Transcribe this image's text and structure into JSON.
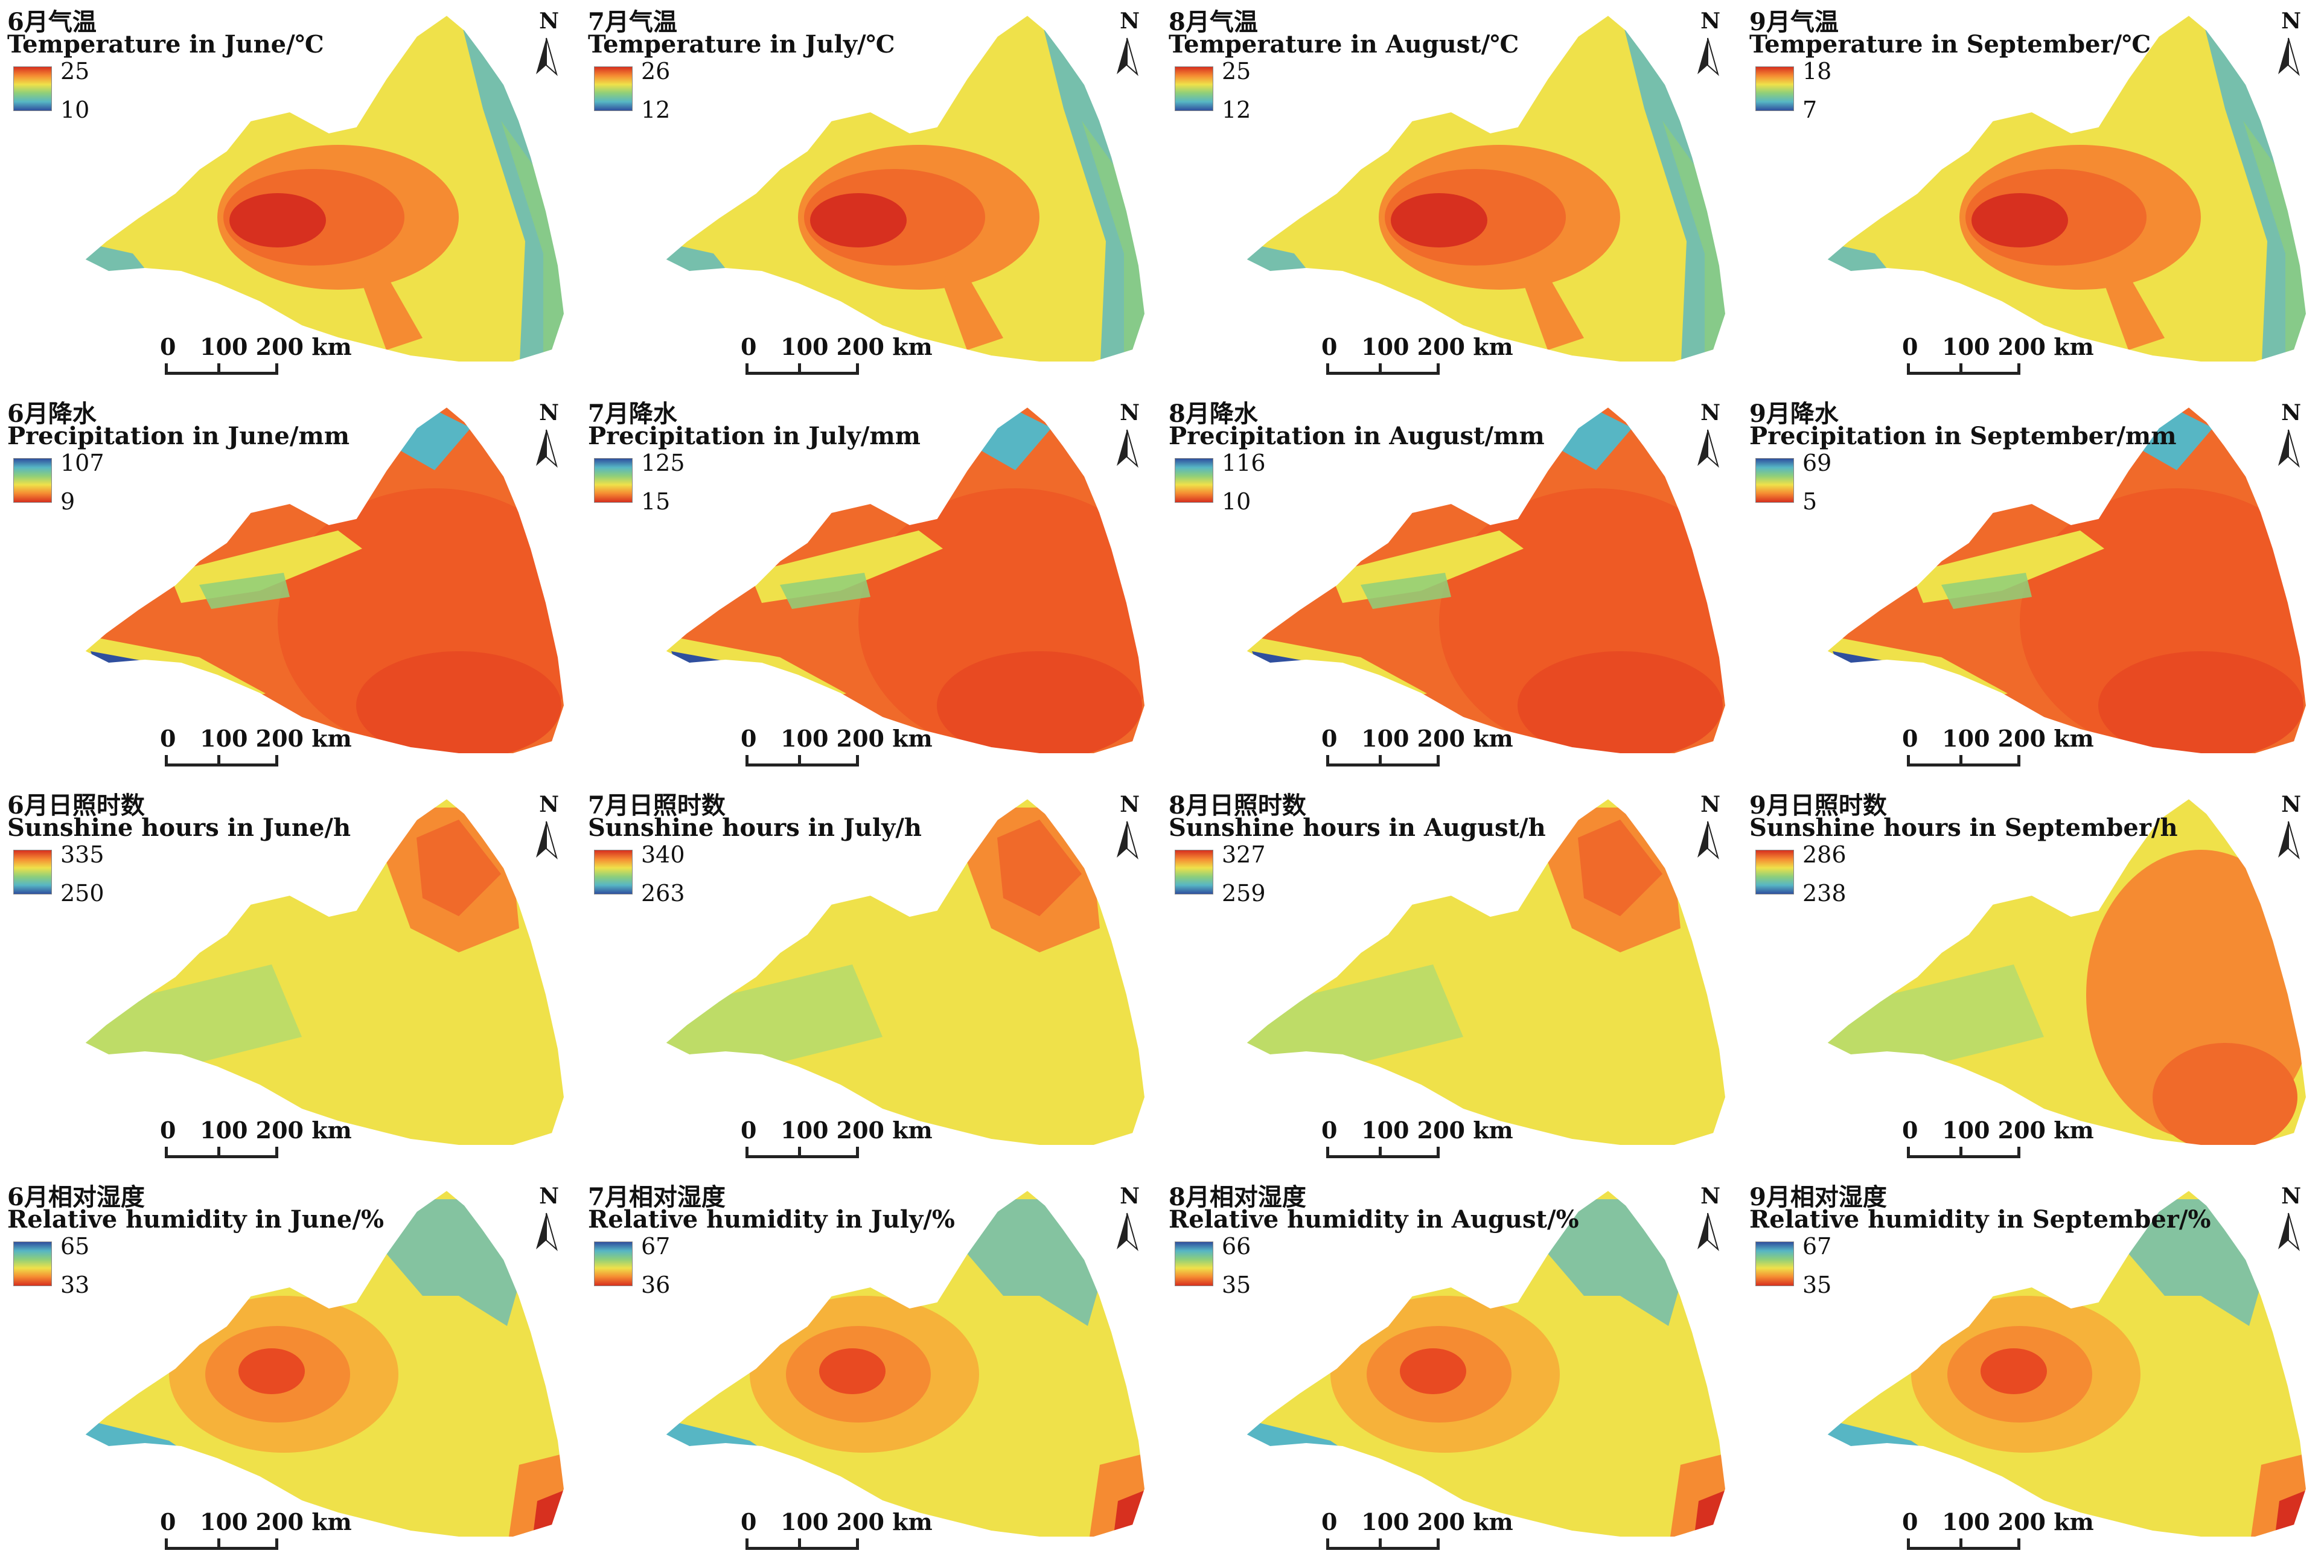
{
  "figure": {
    "rows": [
      {
        "variable": "temperature",
        "colormap": "warm-high",
        "panels": [
          {
            "title_cn": "6月气温",
            "title_en": "Temperature in June/℃",
            "legend_max": "25",
            "legend_min": "10"
          },
          {
            "title_cn": "7月气温",
            "title_en": "Temperature in July/℃",
            "legend_max": "26",
            "legend_min": "12"
          },
          {
            "title_cn": "8月气温",
            "title_en": "Temperature in August/℃",
            "legend_max": "25",
            "legend_min": "12"
          },
          {
            "title_cn": "9月气温",
            "title_en": "Temperature in September/℃",
            "legend_max": "18",
            "legend_min": "7"
          }
        ]
      },
      {
        "variable": "precipitation",
        "colormap": "cool-high",
        "panels": [
          {
            "title_cn": "6月降水",
            "title_en": "Precipitation in June/mm",
            "legend_max": "107",
            "legend_min": "9"
          },
          {
            "title_cn": "7月降水",
            "title_en": "Precipitation in July/mm",
            "legend_max": "125",
            "legend_min": "15"
          },
          {
            "title_cn": "8月降水",
            "title_en": "Precipitation in August/mm",
            "legend_max": "116",
            "legend_min": "10"
          },
          {
            "title_cn": "9月降水",
            "title_en": "Precipitation in September/mm",
            "legend_max": "69",
            "legend_min": "5"
          }
        ]
      },
      {
        "variable": "sunshine",
        "colormap": "warm-high",
        "panels": [
          {
            "title_cn": "6月日照时数",
            "title_en": "Sunshine hours in June/h",
            "legend_max": "335",
            "legend_min": "250"
          },
          {
            "title_cn": "7月日照时数",
            "title_en": "Sunshine hours in July/h",
            "legend_max": "340",
            "legend_min": "263"
          },
          {
            "title_cn": "8月日照时数",
            "title_en": "Sunshine hours in August/h",
            "legend_max": "327",
            "legend_min": "259"
          },
          {
            "title_cn": "9月日照时数",
            "title_en": "Sunshine hours in September/h",
            "legend_max": "286",
            "legend_min": "238"
          }
        ]
      },
      {
        "variable": "humidity",
        "colormap": "cool-high",
        "panels": [
          {
            "title_cn": "6月相对湿度",
            "title_en": "Relative humidity in June/%",
            "legend_max": "65",
            "legend_min": "33"
          },
          {
            "title_cn": "7月相对湿度",
            "title_en": "Relative humidity in July/%",
            "legend_max": "67",
            "legend_min": "36"
          },
          {
            "title_cn": "8月相对湿度",
            "title_en": "Relative humidity in August/%",
            "legend_max": "66",
            "legend_min": "35"
          },
          {
            "title_cn": "9月相对湿度",
            "title_en": "Relative humidity in September/%",
            "legend_max": "67",
            "legend_min": "35"
          }
        ]
      }
    ],
    "north_label": "N",
    "scale_label": "0   100 200 km",
    "colors": {
      "red": "#d7301f",
      "orange": "#f58b32",
      "yellow": "#efe14a",
      "green": "#8fcf7a",
      "teal": "#57b6c4",
      "blue": "#2f4f9e"
    }
  }
}
